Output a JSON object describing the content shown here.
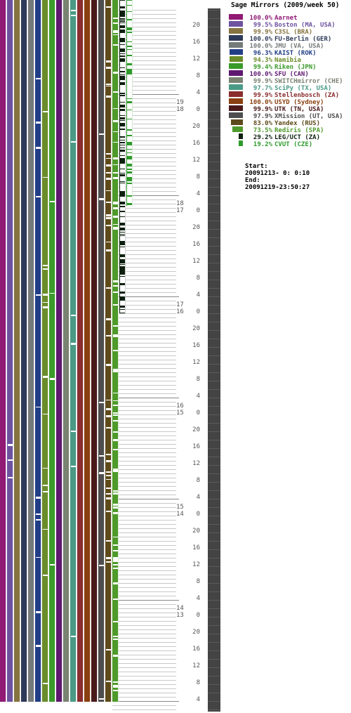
{
  "chart_data": {
    "type": "bar",
    "title": "Sage Mirrors (2009/week 50)",
    "background": "#ffffff",
    "colors": {
      "gridline": "#c8c8c8",
      "day_line": "#888888",
      "summary_column": "#444444",
      "tick_text": "#555555"
    },
    "series": [
      {
        "name": "Aarnet",
        "percent": "100.0%",
        "color": "#901a74"
      },
      {
        "name": "Boston (MA, USA)",
        "percent": "99.5%",
        "color": "#6d52a0"
      },
      {
        "name": "C3SL (BRA)",
        "percent": "99.9%",
        "color": "#857440"
      },
      {
        "name": "FU-Berlin (GER)",
        "percent": "100.0%",
        "color": "#2d3a58"
      },
      {
        "name": "JMU (VA, USA)",
        "percent": "100.0%",
        "color": "#757a7a"
      },
      {
        "name": "KAIST (ROK)",
        "percent": "96.3%",
        "color": "#213e86"
      },
      {
        "name": "Namibia",
        "percent": "94.3%",
        "color": "#6b8c2a"
      },
      {
        "name": "Riken (JPN)",
        "percent": "99.4%",
        "color": "#3a9a2a"
      },
      {
        "name": "SFU (CAN)",
        "percent": "100.0%",
        "color": "#5e1870"
      },
      {
        "name": "SWITCHmirror (CHE)",
        "percent": "99.9%",
        "color": "#7a8272"
      },
      {
        "name": "SciPy (TX, USA)",
        "percent": "97.7%",
        "color": "#4a9a86"
      },
      {
        "name": "Stellenbosch (ZA)",
        "percent": "99.9%",
        "color": "#8a2e2e"
      },
      {
        "name": "USYD (Sydney)",
        "percent": "100.0%",
        "color": "#8a4010"
      },
      {
        "name": "UTK (TN, USA)",
        "percent": "99.9%",
        "color": "#4a1a1a"
      },
      {
        "name": "XMission (UT, USA)",
        "percent": "97.9%",
        "color": "#4e4e4e"
      },
      {
        "name": "Yandex (RUS)",
        "percent": "83.0%",
        "color": "#5e4a1a"
      },
      {
        "name": "Rediris (SPA)",
        "percent": "73.5%",
        "color": "#4e9a2a"
      },
      {
        "name": "LEG/UCT (ZA)",
        "percent": "29.2%",
        "color": "#0e2010"
      },
      {
        "name": "CVUT (CZE)",
        "percent": "19.2%",
        "color": "#2e9a2a"
      }
    ],
    "time_axis": {
      "hour_ticks": [
        "20",
        "16",
        "12",
        "8",
        "4",
        "0"
      ],
      "day_boundaries": [
        {
          "upper": "19",
          "lower": "18"
        },
        {
          "upper": "18",
          "lower": "17"
        },
        {
          "upper": "17",
          "lower": "16"
        },
        {
          "upper": "16",
          "lower": "15"
        },
        {
          "upper": "15",
          "lower": "14"
        },
        {
          "upper": "14",
          "lower": "13"
        }
      ]
    },
    "period": {
      "start_label": "Start:",
      "start": "20091213- 0: 0:10",
      "end_label": "End:",
      "end": "20091219-23:50:27"
    }
  }
}
